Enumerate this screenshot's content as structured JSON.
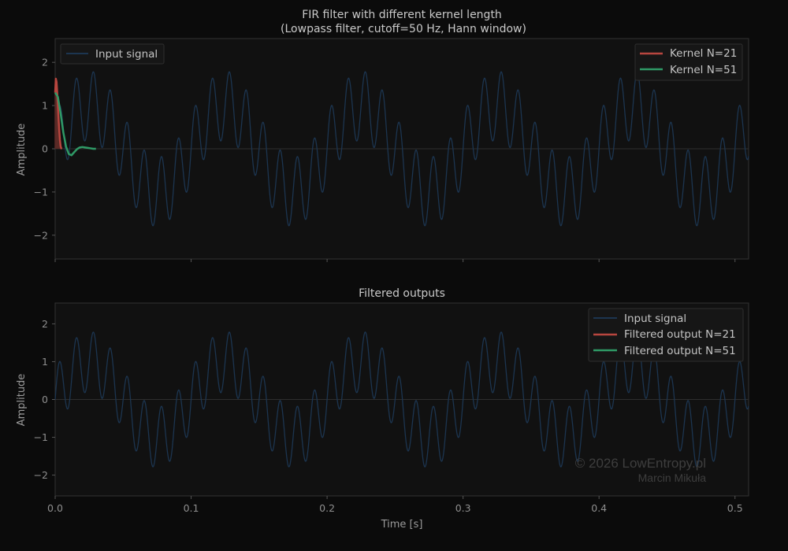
{
  "chart_data": [
    {
      "type": "line",
      "title": "FIR filter with different kernel length",
      "subtitle": "(Lowpass filter, cutoff=50 Hz, Hann window)",
      "xlabel": "",
      "ylabel": "Amplitude",
      "xlim": [
        0.0,
        0.51
      ],
      "ylim": [
        -2.55,
        2.55
      ],
      "yticks": [
        -2,
        -1,
        0,
        1,
        2
      ],
      "grid": false,
      "legend_left": {
        "placement": "top-left",
        "entries": [
          "Input signal"
        ]
      },
      "legend_right": {
        "placement": "top-right",
        "entries": [
          "Kernel N=21",
          "Kernel N=51"
        ]
      },
      "series": [
        {
          "name": "Input signal",
          "color": "#1c3550",
          "model": "sum of sinusoids: 1.0*sin(2*pi*10*t) + 0.8*sin(2*pi*80*t), sampled over 0–0.51 s"
        },
        {
          "name": "Kernel N=21",
          "color": "#b8463f",
          "x": [
            0.0,
            0.0005,
            0.001,
            0.0015,
            0.002,
            0.0025,
            0.003,
            0.0035,
            0.004,
            0.0045,
            0.005
          ],
          "y": [
            1.3,
            1.62,
            1.55,
            1.3,
            1.0,
            0.7,
            0.42,
            0.2,
            0.06,
            0.01,
            0.0
          ]
        },
        {
          "name": "Kernel N=51",
          "color": "#2f9a66",
          "x": [
            0.0,
            0.002,
            0.004,
            0.006,
            0.008,
            0.01,
            0.012,
            0.014,
            0.016,
            0.018,
            0.02,
            0.022,
            0.024,
            0.026,
            0.028,
            0.03
          ],
          "y": [
            1.3,
            1.2,
            0.82,
            0.38,
            0.05,
            -0.12,
            -0.15,
            -0.08,
            -0.01,
            0.03,
            0.04,
            0.03,
            0.02,
            0.01,
            0.0,
            0.0
          ]
        }
      ]
    },
    {
      "type": "line",
      "title": "Filtered outputs",
      "xlabel": "Time [s]",
      "ylabel": "Amplitude",
      "xlim": [
        0.0,
        0.51
      ],
      "ylim": [
        -2.55,
        2.55
      ],
      "xticks": [
        0.0,
        0.1,
        0.2,
        0.3,
        0.4,
        0.5
      ],
      "yticks": [
        -2,
        -1,
        0,
        1,
        2
      ],
      "grid": false,
      "legend": {
        "placement": "top-right",
        "entries": [
          "Input signal",
          "Filtered output N=21",
          "Filtered output N=51"
        ]
      },
      "series": [
        {
          "name": "Input signal",
          "color": "#1c3550"
        },
        {
          "name": "Filtered output N=21",
          "color": "#b8463f"
        },
        {
          "name": "Filtered output N=51",
          "color": "#2f9a66"
        }
      ]
    }
  ],
  "watermark": {
    "line1": "© 2026 LowEntropy.pl",
    "line2": "Marcin Mikuła"
  }
}
